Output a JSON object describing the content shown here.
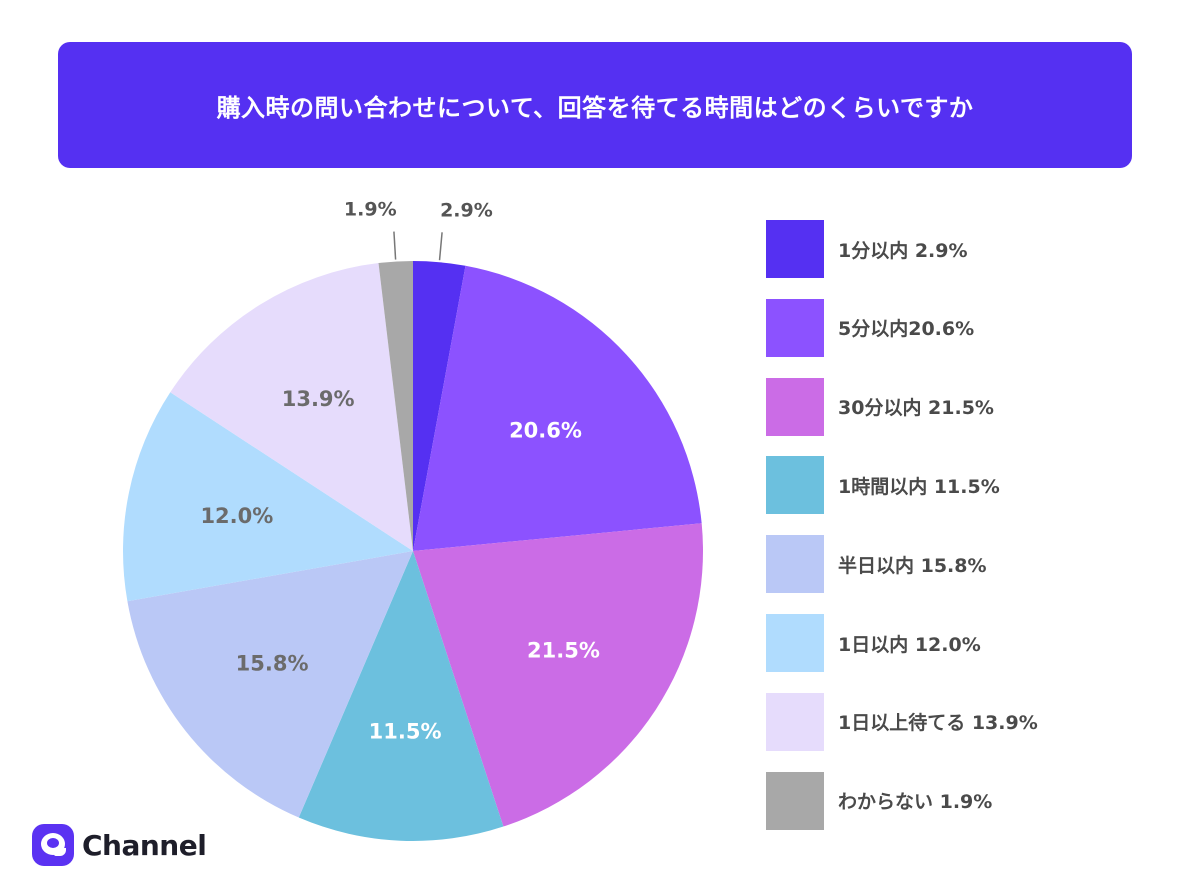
{
  "title": "購入時の問い合わせについて、回答を待てる時間はどのくらいですか",
  "colors": {
    "banner": "#5530f2",
    "label_dark": "#6b6b6b",
    "label_light": "#ffffff"
  },
  "brand": {
    "name": "Channel",
    "logo_icon": "chat-bubble-icon"
  },
  "chart_data": {
    "type": "pie",
    "title": "購入時の問い合わせについて、回答を待てる時間はどのくらいですか",
    "start": "12-o'clock",
    "direction": "clockwise",
    "legend_position": "right",
    "slices": [
      {
        "name": "1分以内",
        "value": 2.9,
        "label": "2.9%",
        "legend": "1分以内 2.9%",
        "color": "#5530f2",
        "label_color": "#ffffff",
        "label_outside": true
      },
      {
        "name": "5分以内",
        "value": 20.6,
        "label": "20.6%",
        "legend": "5分以内20.6%",
        "color": "#8c52ff",
        "label_color": "#ffffff",
        "label_outside": false
      },
      {
        "name": "30分以内",
        "value": 21.5,
        "label": "21.5%",
        "legend": "30分以内 21.5%",
        "color": "#cb6ce6",
        "label_color": "#ffffff",
        "label_outside": false
      },
      {
        "name": "1時間以内",
        "value": 11.5,
        "label": "11.5%",
        "legend": "1時間以内 11.5%",
        "color": "#6cc0de",
        "label_color": "#ffffff",
        "label_outside": false
      },
      {
        "name": "半日以内",
        "value": 15.8,
        "label": "15.8%",
        "legend": "半日以内 15.8%",
        "color": "#bac8f6",
        "label_color": "#6b6b6b",
        "label_outside": false
      },
      {
        "name": "1日以内",
        "value": 12.0,
        "label": "12.0%",
        "legend": "1日以内 12.0%",
        "color": "#b0dcfe",
        "label_color": "#6b6b6b",
        "label_outside": false
      },
      {
        "name": "1日以上待てる",
        "value": 13.9,
        "label": "13.9%",
        "legend": "1日以上待てる 13.9%",
        "color": "#e6dcfc",
        "label_color": "#6b6b6b",
        "label_outside": false
      },
      {
        "name": "わからない",
        "value": 1.9,
        "label": "1.9%",
        "legend": "わからない 1.9%",
        "color": "#a8a8a8",
        "label_color": "#ffffff",
        "label_outside": true
      }
    ]
  }
}
